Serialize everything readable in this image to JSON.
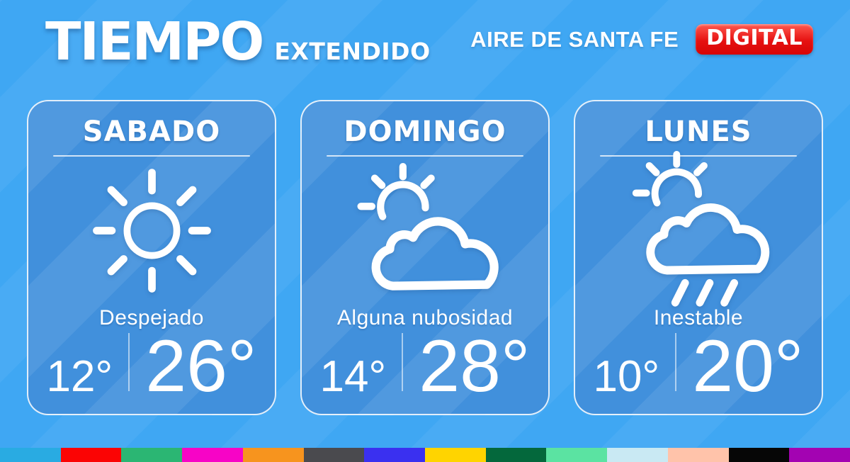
{
  "header": {
    "title": "TIEMPO",
    "subtitle": "EXTENDIDO",
    "brand": "AIRE DE SANTA FE",
    "brand_badge": "DIGITAL"
  },
  "colors": {
    "background": "#3FA7F3",
    "card": "#4190DC",
    "badge_red": "#E61111",
    "white": "#FFFFFF"
  },
  "cards": [
    {
      "day": "SABADO",
      "icon": "sun-icon",
      "condition": "Despejado",
      "min": "12°",
      "max": "26°"
    },
    {
      "day": "DOMINGO",
      "icon": "sun-cloud-icon",
      "condition": "Alguna nubosidad",
      "min": "14°",
      "max": "28°"
    },
    {
      "day": "LUNES",
      "icon": "rain-cloud-icon",
      "condition": "Inestable",
      "min": "10°",
      "max": "20°"
    }
  ],
  "footer_bar": {
    "colors": [
      "#29ABE2",
      "#FB0404",
      "#2BB673",
      "#F704C6",
      "#F7941E",
      "#4A4A4E",
      "#3A30F0",
      "#FFD400",
      "#04683C",
      "#5BE3A2",
      "#C9E9F3",
      "#FFC3AA",
      "#060606",
      "#A303B2"
    ]
  }
}
